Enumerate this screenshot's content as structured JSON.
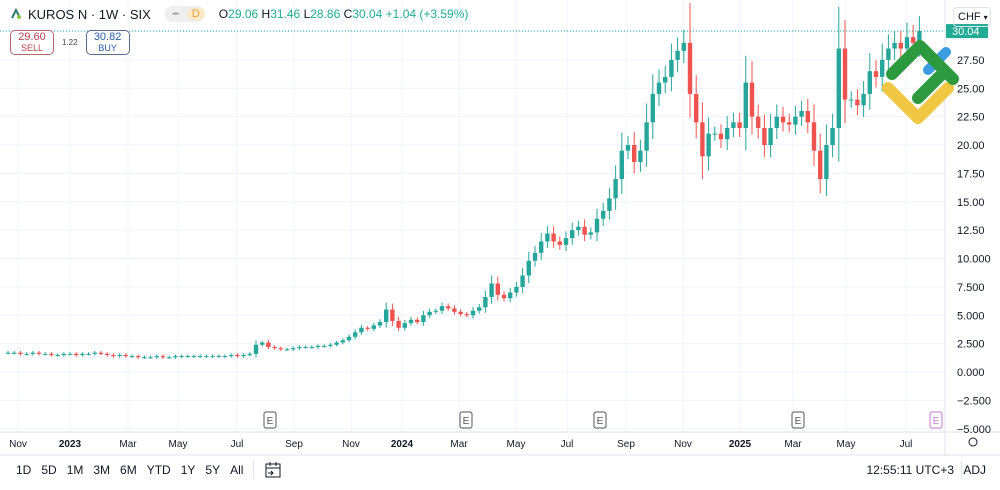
{
  "header": {
    "symbol": "KUROS N · 1W · SIX",
    "delay_badge": "D",
    "open_label": "O",
    "open": "29.06",
    "high_label": "H",
    "high": "31.46",
    "low_label": "L",
    "low": "28.86",
    "close_label": "C",
    "close": "30.04",
    "change": "+1.04 (+3.59%)"
  },
  "trade": {
    "sell_price": "29.60",
    "sell_label": "SELL",
    "spread": "1.22",
    "buy_price": "30.82",
    "buy_label": "BUY"
  },
  "currency": "CHF",
  "toolbar": {
    "ranges": [
      "1D",
      "5D",
      "1M",
      "3M",
      "6M",
      "YTD",
      "1Y",
      "5Y",
      "All"
    ],
    "clock": "12:55:11 UTC+3",
    "adj": "ADJ"
  },
  "colors": {
    "up": "#26a69a",
    "down": "#ef5350",
    "last_price": "#22ab94",
    "earnings_future": "#c27bd1"
  },
  "chart_data": {
    "type": "candlestick",
    "interval": "1W",
    "current_price_label": "30.04",
    "y_ticks": [
      "30.00",
      "27.50",
      "25.00",
      "22.50",
      "20.00",
      "17.50",
      "15.00",
      "12.50",
      "10.000",
      "7.500",
      "5.000",
      "2.500",
      "0.000",
      "−2.500",
      "−5.000"
    ],
    "y_tick_values": [
      30,
      27.5,
      25,
      22.5,
      20,
      17.5,
      15,
      12.5,
      10,
      7.5,
      5,
      2.5,
      0,
      -2.5,
      -5
    ],
    "x_ticks": [
      "Nov",
      "2023",
      "Mar",
      "May",
      "Jul",
      "Sep",
      "Nov",
      "2024",
      "Mar",
      "May",
      "Jul",
      "Sep",
      "Nov",
      "2025",
      "Mar",
      "May",
      "Jul"
    ],
    "earnings_markers": [
      "E",
      "E",
      "E",
      "E",
      "E"
    ],
    "closes": [
      1.7,
      1.7,
      1.6,
      1.6,
      1.7,
      1.6,
      1.6,
      1.5,
      1.5,
      1.6,
      1.6,
      1.5,
      1.6,
      1.6,
      1.7,
      1.6,
      1.5,
      1.4,
      1.5,
      1.4,
      1.4,
      1.3,
      1.3,
      1.3,
      1.4,
      1.3,
      1.3,
      1.4,
      1.4,
      1.4,
      1.4,
      1.4,
      1.4,
      1.4,
      1.4,
      1.4,
      1.5,
      1.4,
      1.5,
      1.6,
      2.4,
      2.6,
      2.2,
      2.1,
      2.0,
      2.0,
      2.1,
      2.2,
      2.2,
      2.2,
      2.3,
      2.3,
      2.4,
      2.6,
      2.8,
      3.1,
      3.5,
      3.9,
      3.8,
      4.1,
      4.4,
      5.5,
      4.5,
      3.9,
      4.3,
      4.6,
      4.4,
      5.0,
      5.3,
      5.4,
      5.8,
      5.6,
      5.3,
      5.1,
      5.0,
      5.4,
      5.7,
      6.6,
      7.8,
      6.8,
      6.5,
      7.0,
      7.5,
      8.5,
      9.8,
      10.5,
      11.5,
      12.2,
      11.5,
      11.2,
      11.8,
      12.5,
      12.8,
      12.1,
      12.3,
      13.5,
      14.2,
      15.3,
      17.0,
      19.5,
      20.0,
      18.5,
      19.5,
      22.0,
      24.5,
      25.5,
      26.0,
      27.5,
      28.3,
      29.0,
      24.5,
      22.0,
      19.0,
      21.0,
      21.0,
      20.5,
      21.5,
      22.0,
      21.5,
      25.5,
      22.5,
      21.5,
      20.0,
      21.5,
      22.5,
      22.0,
      21.8,
      22.5,
      23.0,
      22.0,
      19.5,
      17.0,
      20.0,
      21.5,
      28.5,
      24.0,
      24.0,
      23.5,
      24.5,
      26.5,
      26.0,
      27.5,
      28.5,
      29.0,
      28.5,
      29.5,
      29.0,
      30.04
    ]
  }
}
